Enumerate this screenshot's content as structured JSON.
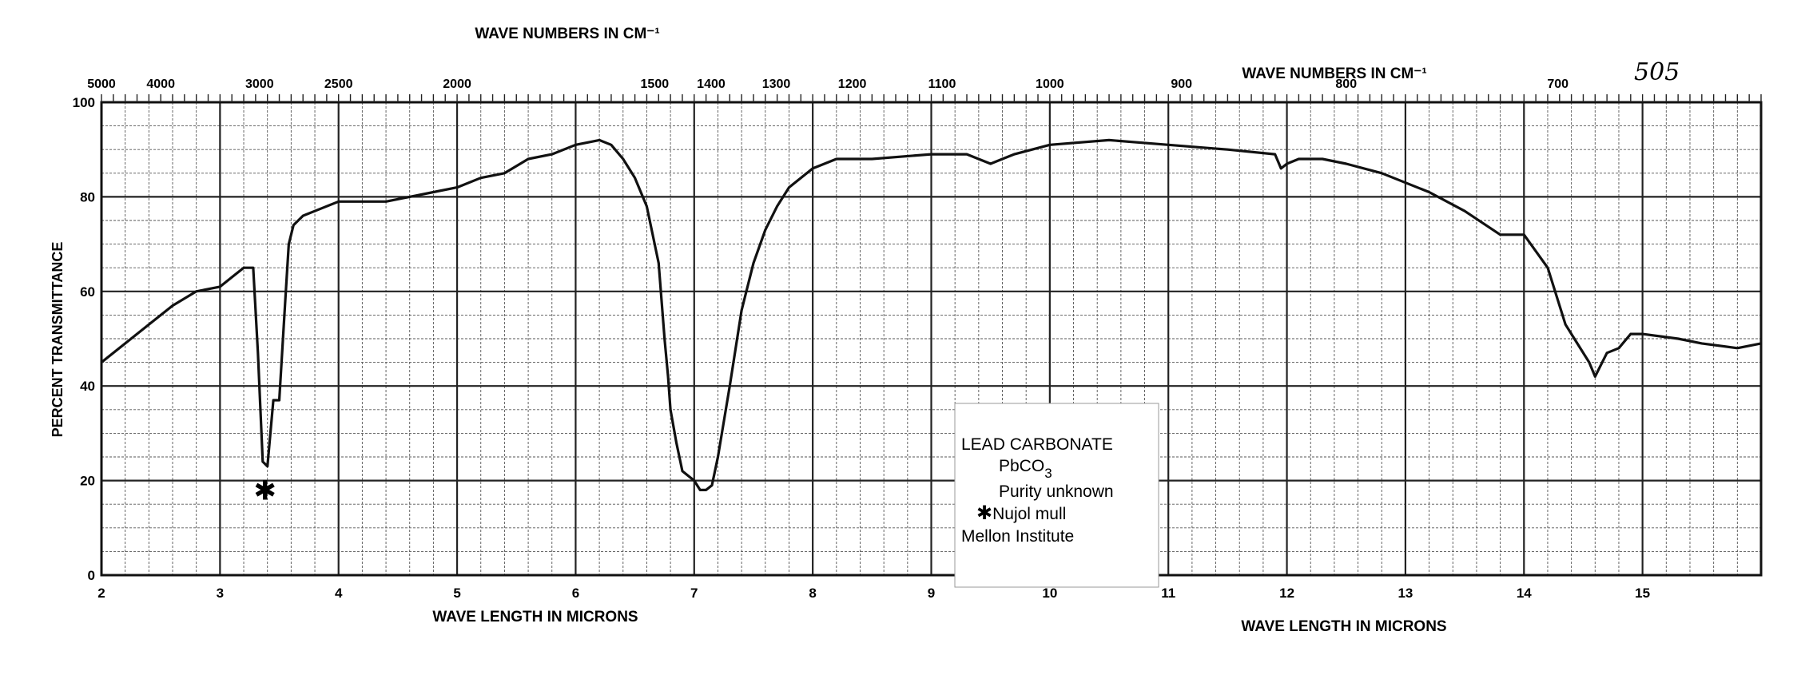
{
  "sheet_number": "505",
  "chart_data": {
    "type": "line",
    "title": "",
    "top_axis_label_left": "WAVE  NUMBERS  IN  CM⁻¹",
    "top_axis_label_right": "WAVE  NUMBERS  IN  CM⁻¹",
    "bottom_axis_label_left": "WAVE  LENGTH  IN  MICRONS",
    "bottom_axis_label_right": "WAVE  LENGTH  IN  MICRONS",
    "ylabel": "PERCENT  TRANSMITTANCE",
    "xlim": [
      2,
      16
    ],
    "ylim": [
      0,
      100
    ],
    "grid": true,
    "x_ticks": [
      {
        "value": 2,
        "label": "2"
      },
      {
        "value": 3,
        "label": "3"
      },
      {
        "value": 4,
        "label": "4"
      },
      {
        "value": 5,
        "label": "5"
      },
      {
        "value": 6,
        "label": "6"
      },
      {
        "value": 7,
        "label": "7"
      },
      {
        "value": 8,
        "label": "8"
      },
      {
        "value": 9,
        "label": "9"
      },
      {
        "value": 10,
        "label": "10"
      },
      {
        "value": 11,
        "label": "11"
      },
      {
        "value": 12,
        "label": "12"
      },
      {
        "value": 13,
        "label": "13"
      },
      {
        "value": 14,
        "label": "14"
      },
      {
        "value": 15,
        "label": "15"
      }
    ],
    "y_ticks": [
      {
        "value": 0,
        "label": "0"
      },
      {
        "value": 20,
        "label": "20"
      },
      {
        "value": 40,
        "label": "40"
      },
      {
        "value": 60,
        "label": "60"
      },
      {
        "value": 80,
        "label": "80"
      },
      {
        "value": 100,
        "label": "100"
      }
    ],
    "top_ticks": [
      {
        "value": 5000,
        "label": "5000"
      },
      {
        "value": 4000,
        "label": "4000"
      },
      {
        "value": 3000,
        "label": "3000"
      },
      {
        "value": 2500,
        "label": "2500"
      },
      {
        "value": 2000,
        "label": "2000"
      },
      {
        "value": 1500,
        "label": "1500"
      },
      {
        "value": 1400,
        "label": "1400"
      },
      {
        "value": 1300,
        "label": "1300"
      },
      {
        "value": 1200,
        "label": "1200"
      },
      {
        "value": 1100,
        "label": "1100"
      },
      {
        "value": 1000,
        "label": "1000"
      },
      {
        "value": 900,
        "label": "900"
      },
      {
        "value": 800,
        "label": "800"
      },
      {
        "value": 700,
        "label": "700"
      }
    ],
    "legend_box": {
      "title": "LEAD CARBONATE",
      "formula": "PbCO",
      "formula_subscript": "3",
      "purity": "Purity unknown",
      "note_marker": "✱",
      "note": "Nujol mull",
      "source": "Mellon Institute"
    },
    "annotation": {
      "symbol": "✱",
      "x": 3.38,
      "y": 18
    },
    "series": [
      {
        "line_color": "#111111",
        "x": [
          2.0,
          2.2,
          2.4,
          2.6,
          2.8,
          3.0,
          3.1,
          3.2,
          3.28,
          3.32,
          3.36,
          3.4,
          3.45,
          3.48,
          3.5,
          3.55,
          3.58,
          3.62,
          3.7,
          3.8,
          4.0,
          4.2,
          4.4,
          4.6,
          4.8,
          5.0,
          5.2,
          5.4,
          5.6,
          5.8,
          6.0,
          6.2,
          6.3,
          6.4,
          6.5,
          6.6,
          6.7,
          6.75,
          6.78,
          6.8,
          6.85,
          6.9,
          7.0,
          7.05,
          7.1,
          7.15,
          7.2,
          7.3,
          7.4,
          7.5,
          7.6,
          7.7,
          7.8,
          8.0,
          8.2,
          8.5,
          9.0,
          9.3,
          9.5,
          9.6,
          9.7,
          10.0,
          10.5,
          11.0,
          11.5,
          11.9,
          11.95,
          12.0,
          12.1,
          12.3,
          12.5,
          12.8,
          13.2,
          13.5,
          13.8,
          14.0,
          14.2,
          14.35,
          14.45,
          14.55,
          14.6,
          14.7,
          14.8,
          14.9,
          15.0,
          15.3,
          15.5,
          15.8,
          16.0
        ],
        "y": [
          45,
          49,
          53,
          57,
          60,
          61,
          63,
          65,
          65,
          47,
          24,
          23,
          37,
          37,
          37,
          58,
          70,
          74,
          76,
          77,
          79,
          79,
          79,
          80,
          81,
          82,
          84,
          85,
          88,
          89,
          91,
          92,
          91,
          88,
          84,
          78,
          66,
          50,
          42,
          35,
          28,
          22,
          20,
          18,
          18,
          19,
          25,
          40,
          56,
          66,
          73,
          78,
          82,
          86,
          88,
          88,
          89,
          89,
          87,
          88,
          89,
          91,
          92,
          91,
          90,
          89,
          86,
          87,
          88,
          88,
          87,
          85,
          81,
          77,
          72,
          72,
          65,
          53,
          49,
          45,
          42,
          47,
          48,
          51,
          51,
          50,
          49,
          48,
          49
        ]
      }
    ]
  }
}
